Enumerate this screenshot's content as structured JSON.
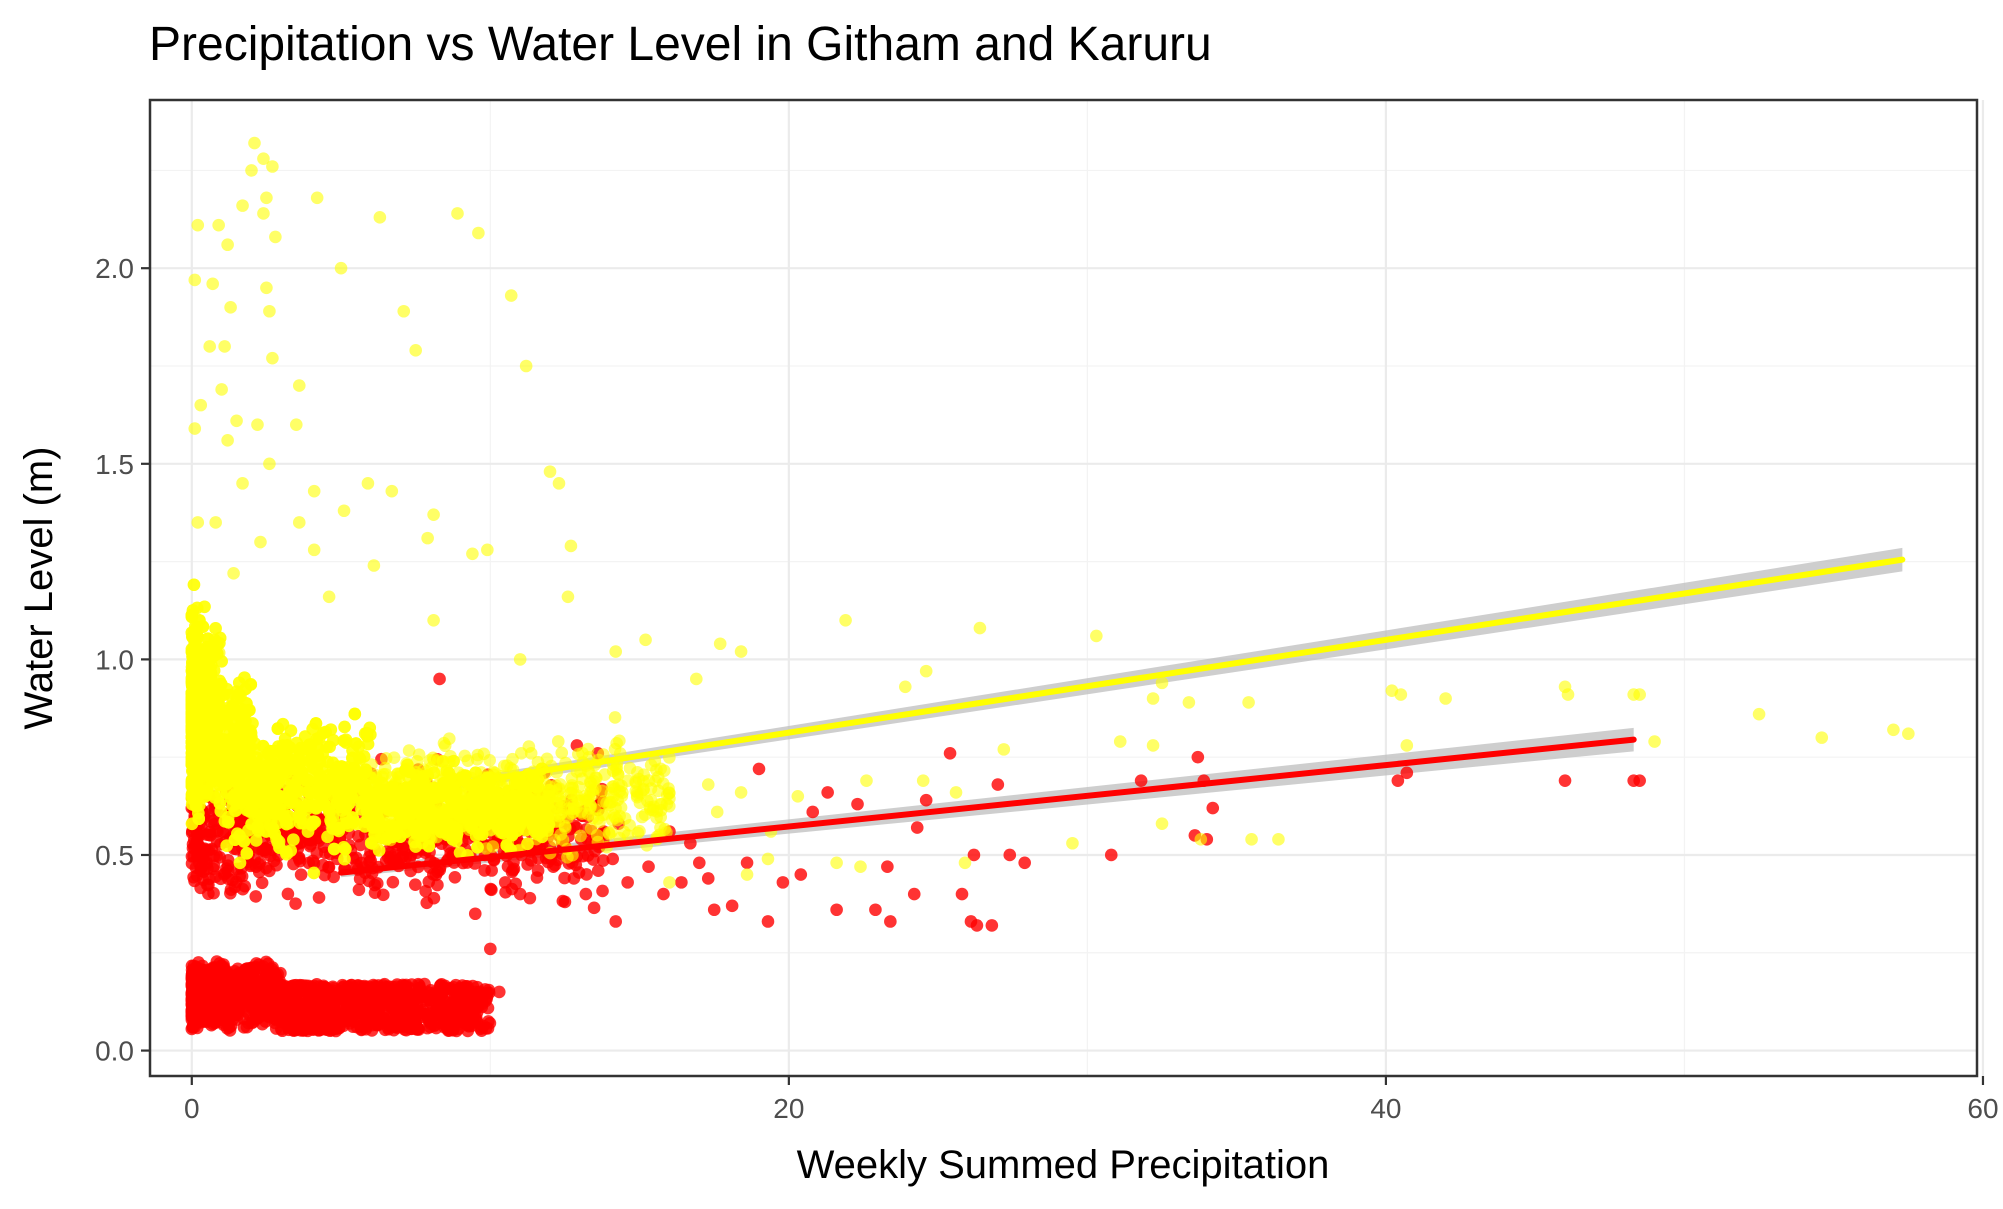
{
  "chart_data": {
    "type": "scatter",
    "title": "Precipitation vs Water Level in Githam and Karuru",
    "xlabel": "Weekly Summed Precipitation",
    "ylabel": "Water Level (m)",
    "xlim": [
      -1.4,
      59.8
    ],
    "ylim": [
      -0.065,
      2.43
    ],
    "x_ticks": [
      0,
      20,
      40,
      60
    ],
    "x_tick_labels": [
      "0",
      "20",
      "40",
      "60"
    ],
    "y_ticks": [
      0.0,
      0.5,
      1.0,
      1.5,
      2.0
    ],
    "y_tick_labels": [
      "0.0",
      "0.5",
      "1.0",
      "1.5",
      "2.0"
    ],
    "grid": true,
    "legend": "none",
    "colors": {
      "red": "#ff0000",
      "yellow": "#ffff00",
      "band": "#bdbdbd",
      "panel_border": "#333333"
    },
    "series": [
      {
        "name": "red",
        "color": "#ff0000",
        "points": [
          [
            8.3,
            0.95
          ],
          [
            12.9,
            0.78
          ],
          [
            13.6,
            0.76
          ],
          [
            12.2,
            0.67
          ],
          [
            13.1,
            0.6
          ],
          [
            13.8,
            0.56
          ],
          [
            14.3,
            0.58
          ],
          [
            14.1,
            0.49
          ],
          [
            12.8,
            0.44
          ],
          [
            13.2,
            0.4
          ],
          [
            14.6,
            0.43
          ],
          [
            12.5,
            0.38
          ],
          [
            14.2,
            0.33
          ],
          [
            15.3,
            0.47
          ],
          [
            15.8,
            0.4
          ],
          [
            16.0,
            0.56
          ],
          [
            16.4,
            0.43
          ],
          [
            16.7,
            0.53
          ],
          [
            17.0,
            0.48
          ],
          [
            17.3,
            0.44
          ],
          [
            17.5,
            0.36
          ],
          [
            18.1,
            0.37
          ],
          [
            18.6,
            0.48
          ],
          [
            19.0,
            0.72
          ],
          [
            19.3,
            0.33
          ],
          [
            19.8,
            0.43
          ],
          [
            20.4,
            0.45
          ],
          [
            20.8,
            0.61
          ],
          [
            21.3,
            0.66
          ],
          [
            21.6,
            0.36
          ],
          [
            22.3,
            0.63
          ],
          [
            22.9,
            0.36
          ],
          [
            23.4,
            0.33
          ],
          [
            23.3,
            0.47
          ],
          [
            24.3,
            0.57
          ],
          [
            24.6,
            0.64
          ],
          [
            24.2,
            0.4
          ],
          [
            25.4,
            0.76
          ],
          [
            25.8,
            0.4
          ],
          [
            26.1,
            0.33
          ],
          [
            26.2,
            0.5
          ],
          [
            27.0,
            0.68
          ],
          [
            26.8,
            0.32
          ],
          [
            27.4,
            0.5
          ],
          [
            26.3,
            0.32
          ],
          [
            27.9,
            0.48
          ],
          [
            30.8,
            0.5
          ],
          [
            31.8,
            0.69
          ],
          [
            33.6,
            0.55
          ],
          [
            34.0,
            0.54
          ],
          [
            34.2,
            0.62
          ],
          [
            33.7,
            0.75
          ],
          [
            33.9,
            0.69
          ],
          [
            40.4,
            0.69
          ],
          [
            40.7,
            0.71
          ],
          [
            46.0,
            0.69
          ],
          [
            48.3,
            0.69
          ],
          [
            48.5,
            0.69
          ],
          [
            10.0,
            0.26
          ],
          [
            10.3,
            0.15
          ],
          [
            9.5,
            0.15
          ],
          [
            9.0,
            0.16
          ],
          [
            8.5,
            0.16
          ],
          [
            11.0,
            0.4
          ],
          [
            10.5,
            0.43
          ],
          [
            11.6,
            0.46
          ],
          [
            12.0,
            0.52
          ],
          [
            12.2,
            0.62
          ],
          [
            11.8,
            0.71
          ],
          [
            13.5,
            0.51
          ]
        ]
      },
      {
        "name": "yellow",
        "color": "#ffff00",
        "points": [
          [
            2.1,
            2.32
          ],
          [
            2.4,
            2.28
          ],
          [
            2.0,
            2.25
          ],
          [
            2.7,
            2.26
          ],
          [
            1.7,
            2.16
          ],
          [
            2.5,
            2.18
          ],
          [
            4.2,
            2.18
          ],
          [
            0.2,
            2.11
          ],
          [
            0.9,
            2.11
          ],
          [
            2.4,
            2.14
          ],
          [
            8.9,
            2.14
          ],
          [
            9.6,
            2.09
          ],
          [
            6.3,
            2.13
          ],
          [
            1.2,
            2.06
          ],
          [
            2.8,
            2.08
          ],
          [
            5.0,
            2.0
          ],
          [
            0.1,
            1.97
          ],
          [
            0.7,
            1.96
          ],
          [
            2.5,
            1.95
          ],
          [
            1.3,
            1.9
          ],
          [
            2.6,
            1.89
          ],
          [
            10.7,
            1.93
          ],
          [
            1.1,
            1.8
          ],
          [
            0.6,
            1.8
          ],
          [
            2.7,
            1.77
          ],
          [
            7.1,
            1.89
          ],
          [
            7.5,
            1.79
          ],
          [
            11.2,
            1.75
          ],
          [
            1.0,
            1.69
          ],
          [
            3.6,
            1.7
          ],
          [
            0.3,
            1.65
          ],
          [
            1.5,
            1.61
          ],
          [
            3.5,
            1.6
          ],
          [
            2.2,
            1.6
          ],
          [
            0.1,
            1.59
          ],
          [
            1.2,
            1.56
          ],
          [
            2.6,
            1.5
          ],
          [
            1.7,
            1.45
          ],
          [
            5.9,
            1.45
          ],
          [
            6.7,
            1.43
          ],
          [
            4.1,
            1.43
          ],
          [
            5.1,
            1.38
          ],
          [
            8.1,
            1.37
          ],
          [
            12.0,
            1.48
          ],
          [
            12.3,
            1.45
          ],
          [
            0.2,
            1.35
          ],
          [
            0.8,
            1.35
          ],
          [
            3.6,
            1.35
          ],
          [
            7.9,
            1.31
          ],
          [
            9.4,
            1.27
          ],
          [
            9.9,
            1.28
          ],
          [
            12.7,
            1.29
          ],
          [
            2.3,
            1.3
          ],
          [
            4.1,
            1.28
          ],
          [
            6.1,
            1.24
          ],
          [
            1.4,
            1.22
          ],
          [
            12.6,
            1.16
          ],
          [
            4.6,
            1.16
          ],
          [
            8.1,
            1.1
          ],
          [
            21.9,
            1.1
          ],
          [
            26.4,
            1.08
          ],
          [
            30.3,
            1.06
          ],
          [
            15.2,
            1.05
          ],
          [
            17.7,
            1.04
          ],
          [
            18.4,
            1.02
          ],
          [
            14.2,
            1.02
          ],
          [
            11.0,
            1.0
          ],
          [
            16.9,
            0.95
          ],
          [
            24.6,
            0.97
          ],
          [
            23.9,
            0.93
          ],
          [
            32.2,
            0.9
          ],
          [
            32.5,
            0.94
          ],
          [
            35.4,
            0.89
          ],
          [
            40.2,
            0.92
          ],
          [
            40.5,
            0.91
          ],
          [
            42.0,
            0.9
          ],
          [
            46.0,
            0.93
          ],
          [
            46.1,
            0.91
          ],
          [
            48.3,
            0.91
          ],
          [
            48.5,
            0.91
          ],
          [
            52.5,
            0.86
          ],
          [
            57.0,
            0.82
          ],
          [
            57.5,
            0.81
          ],
          [
            54.6,
            0.8
          ],
          [
            49.0,
            0.79
          ],
          [
            40.7,
            0.78
          ],
          [
            31.1,
            0.79
          ],
          [
            32.2,
            0.78
          ],
          [
            27.2,
            0.77
          ],
          [
            22.6,
            0.69
          ],
          [
            24.5,
            0.69
          ],
          [
            25.6,
            0.66
          ],
          [
            20.3,
            0.65
          ],
          [
            17.3,
            0.68
          ],
          [
            18.4,
            0.66
          ],
          [
            14.3,
            0.68
          ],
          [
            29.5,
            0.53
          ],
          [
            32.5,
            0.58
          ],
          [
            33.8,
            0.54
          ],
          [
            35.5,
            0.54
          ],
          [
            36.4,
            0.54
          ],
          [
            33.4,
            0.89
          ],
          [
            21.6,
            0.48
          ],
          [
            22.4,
            0.47
          ],
          [
            25.9,
            0.48
          ],
          [
            18.6,
            0.45
          ],
          [
            19.3,
            0.49
          ],
          [
            16.0,
            0.43
          ],
          [
            13.9,
            0.52
          ],
          [
            15.7,
            0.57
          ],
          [
            17.6,
            0.61
          ],
          [
            19.4,
            0.56
          ]
        ]
      }
    ],
    "trend_lines": [
      {
        "name": "red",
        "color": "#ff0000",
        "x": [
          5,
          48.3
        ],
        "y": [
          0.455,
          0.795
        ]
      },
      {
        "name": "yellow",
        "color": "#ffff00",
        "x": [
          5,
          57.3
        ],
        "y": [
          0.635,
          1.255
        ]
      }
    ]
  }
}
